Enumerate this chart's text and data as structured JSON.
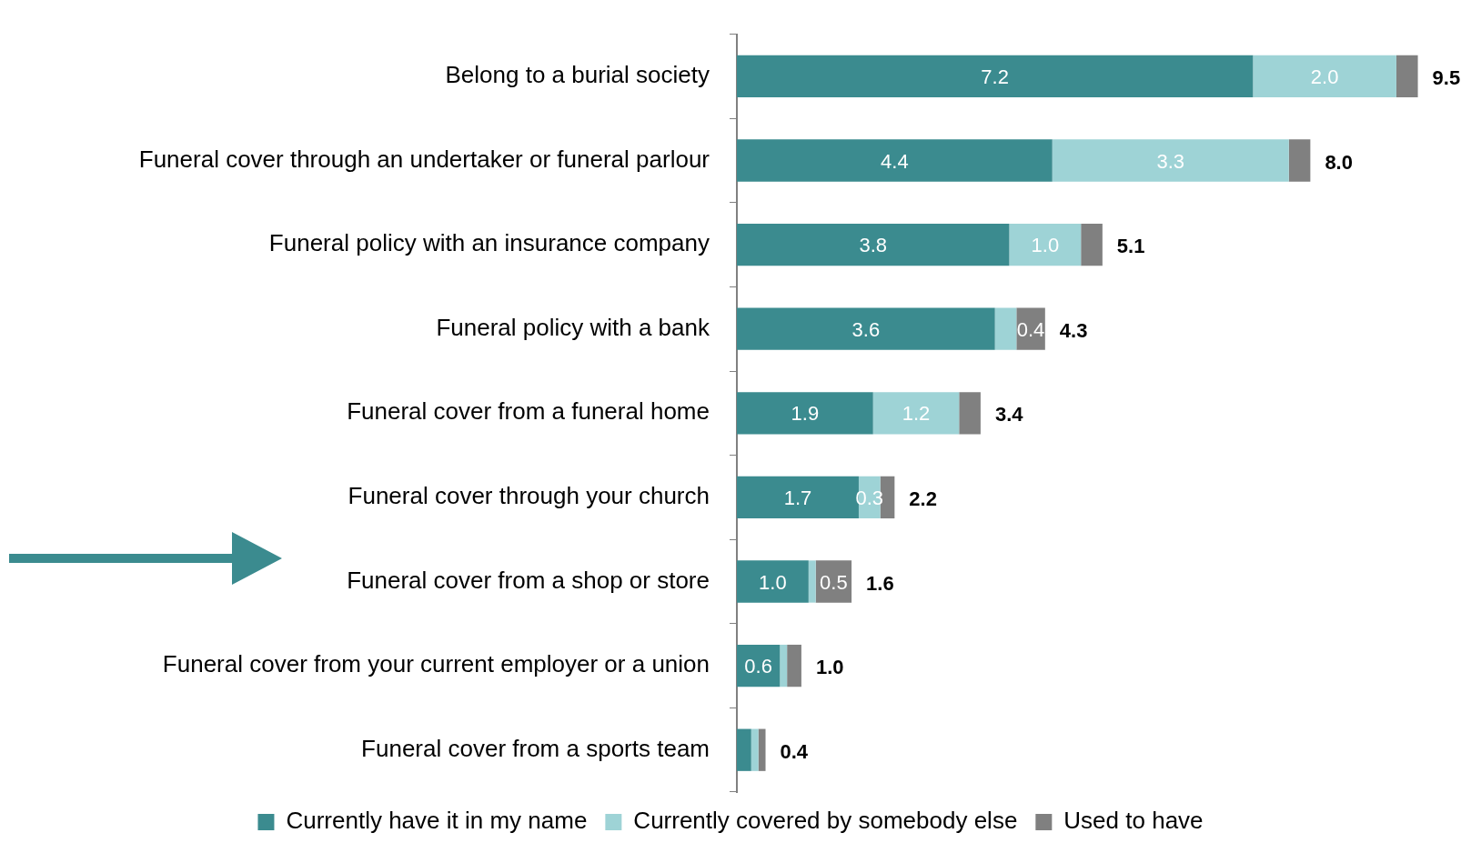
{
  "chart_data": {
    "type": "bar",
    "orientation": "horizontal",
    "stacked": true,
    "legend": "bottom",
    "grid": false,
    "tick_labels": "y",
    "categories": [
      "Belong to a burial society",
      "Funeral cover through an undertaker or funeral parlour",
      "Funeral policy with an insurance company",
      "Funeral policy with a bank",
      "Funeral cover from a funeral home",
      "Funeral cover through your church",
      "Funeral cover from a shop or store",
      "Funeral cover from your current employer or a union",
      "Funeral cover from a sports team"
    ],
    "series": [
      {
        "name": "Currently have it in my name",
        "color": "#3b8b8f",
        "values": [
          7.2,
          4.4,
          3.8,
          3.6,
          1.9,
          1.7,
          1.0,
          0.6,
          0.2
        ],
        "value_labels": [
          "7.2",
          "4.4",
          "3.8",
          "3.6",
          "1.9",
          "1.7",
          "1.0",
          "0.6",
          null
        ]
      },
      {
        "name": "Currently covered by somebody else",
        "color": "#9ed3d6",
        "values": [
          2.0,
          3.3,
          1.0,
          0.3,
          1.2,
          0.3,
          0.1,
          0.1,
          0.1
        ],
        "value_labels": [
          "2.0",
          "3.3",
          "1.0",
          null,
          "1.2",
          "0.3",
          null,
          null,
          null
        ]
      },
      {
        "name": "Used to have",
        "color": "#808080",
        "values": [
          0.3,
          0.3,
          0.3,
          0.4,
          0.3,
          0.2,
          0.5,
          0.2,
          0.1
        ],
        "value_labels": [
          null,
          null,
          null,
          "0.4",
          null,
          null,
          "0.5",
          null,
          null
        ]
      }
    ],
    "totals": [
      "9.5",
      "8.0",
      "5.1",
      "4.3",
      "3.4",
      "2.2",
      "1.6",
      "1.0",
      "0.4"
    ]
  }
}
